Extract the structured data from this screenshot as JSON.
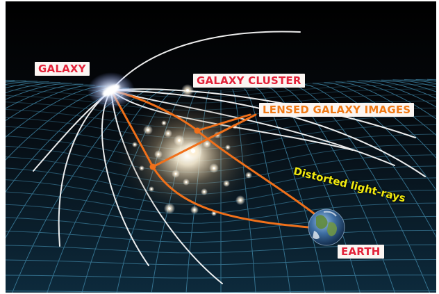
{
  "labels": {
    "galaxy": "GALAXY",
    "galaxy_cluster": "GALAXY CLUSTER",
    "lensed_images": "LENSED GALAXY IMAGES",
    "distorted_rays": "Distorted light-rays",
    "earth": "EARTH"
  },
  "colors": {
    "label_red": "#e32239",
    "label_orange": "#f07a16",
    "label_yellow": "#f1ea10",
    "orange_ray": "#f0701a",
    "grid": "#3c7f9e",
    "background": "#000000"
  },
  "icons": {
    "source": "galaxy-icon",
    "observer": "earth-icon"
  }
}
